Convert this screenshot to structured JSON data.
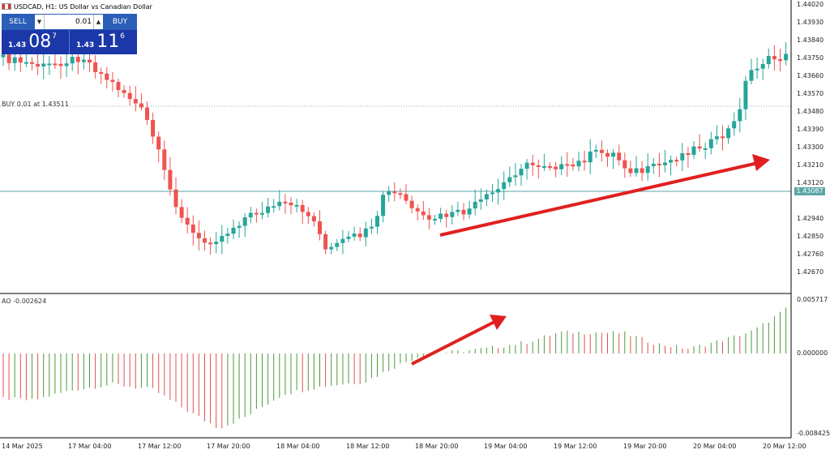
{
  "header": {
    "title": "USDCAD, H1:  US Dollar vs Canadian Dollar"
  },
  "trade_panel": {
    "sell_label": "SELL",
    "buy_label": "BUY",
    "lot_value": "0.01",
    "sell_price": {
      "prefix": "1.43",
      "big": "08",
      "sup": "7"
    },
    "buy_price": {
      "prefix": "1.43",
      "big": "11",
      "sup": "6"
    }
  },
  "order_line_label": "BUY 0.01 at 1.43511",
  "current_price_badge": "1.43087",
  "indicator_label": "AO -0.002624",
  "price_axis": [
    "1.44020",
    "1.43930",
    "1.43840",
    "1.43750",
    "1.43660",
    "1.43570",
    "1.43480",
    "1.43390",
    "1.43300",
    "1.43210",
    "1.43120",
    "1.42940",
    "1.42850",
    "1.42760",
    "1.42670"
  ],
  "ao_axis": [
    "0.005717",
    "0.000000",
    "-0.008425"
  ],
  "time_axis": [
    "14 Mar 2025",
    "17 Mar 04:00",
    "17 Mar 12:00",
    "17 Mar 20:00",
    "18 Mar 04:00",
    "18 Mar 12:00",
    "18 Mar 20:00",
    "19 Mar 04:00",
    "19 Mar 12:00",
    "19 Mar 20:00",
    "20 Mar 04:00",
    "20 Mar 12:00"
  ],
  "colors": {
    "bull": "#26a69a",
    "bear": "#ef5350",
    "arrow": "#e02020",
    "grid": "#a8c8c8"
  }
}
